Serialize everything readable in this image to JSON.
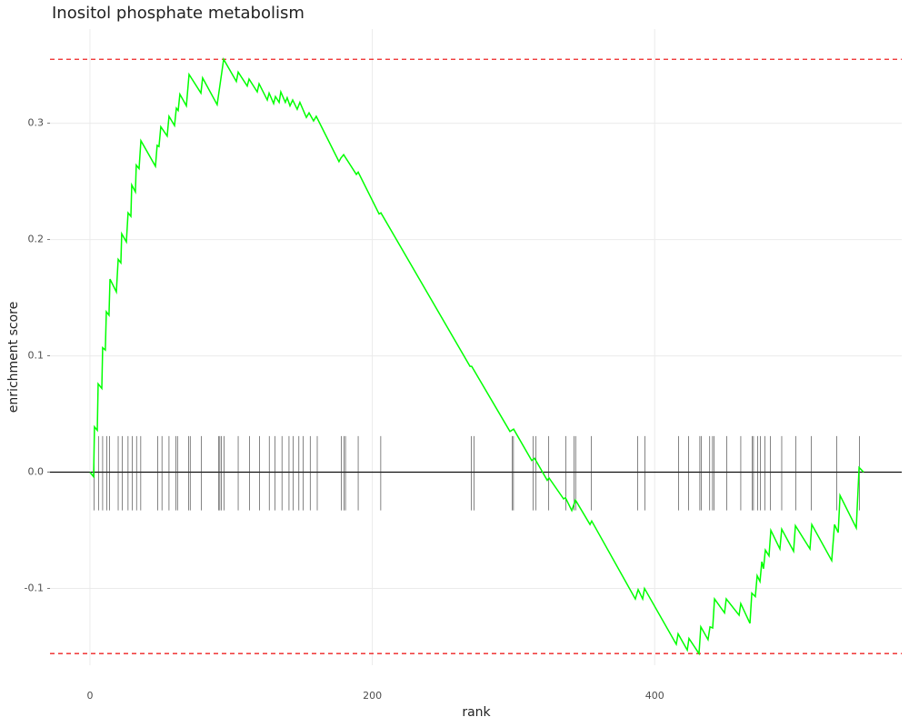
{
  "chart_data": {
    "type": "line",
    "title": "Inositol phosphate metabolism",
    "x_label": "rank",
    "y_label": "enrichment score",
    "xlim": [
      -28.3,
      575
    ],
    "ylim": [
      -0.166,
      0.381
    ],
    "xticks": [
      0,
      200,
      400
    ],
    "yticks": [
      -0.1,
      {
        "value": 0,
        "label": "0.0"
      },
      0.1,
      0.2,
      0.3
    ],
    "grid": true,
    "series": [
      {
        "color": "#00ff00",
        "x": [
          0,
          2.6,
          3.2,
          5.2,
          5.8,
          8.4,
          9.0,
          10.9,
          11.6,
          13.5,
          14.2,
          18.7,
          20.0,
          21.9,
          22.5,
          25.8,
          27.0,
          29.0,
          29.6,
          32.2,
          32.8,
          34.8,
          36.1,
          46.4,
          47.6,
          48.9,
          50.2,
          54.7,
          56.0,
          59.9,
          61.2,
          62.5,
          63.7,
          68.3,
          70.2,
          78.6,
          79.8,
          90.1,
          94.7,
          103.7,
          105.0,
          111.4,
          112.7,
          118.5,
          119.8,
          125.6,
          126.9,
          130.1,
          131.4,
          134.0,
          135.2,
          138.4,
          139.7,
          141.7,
          143.6,
          146.8,
          148.7,
          153.3,
          155.2,
          158.4,
          160.3,
          176.4,
          177.7,
          179.7,
          188.7,
          190.0,
          204.8,
          206.1,
          269.2,
          270.4,
          297.5,
          300.1,
          312.9,
          314.9,
          323.9,
          325.2,
          335.5,
          336.8,
          341.3,
          343.9,
          354.2,
          355.4,
          386.3,
          388.3,
          391.5,
          392.8,
          415.3,
          416.6,
          423.1,
          424.3,
          431.4,
          432.7,
          437.8,
          439.2,
          441.1,
          442.4,
          449.5,
          450.7,
          459.8,
          461.0,
          467.5,
          468.8,
          471.3,
          472.6,
          474.6,
          475.9,
          477.1,
          478.4,
          481.0,
          482.3,
          488.7,
          490.0,
          498.4,
          499.7,
          510.0,
          511.3,
          525.4,
          527.4,
          530.0,
          531.3,
          542.8,
          544.8,
          548.0
        ],
        "values": [
          0,
          -0.004,
          0.039,
          0.036,
          0.076,
          0.072,
          0.107,
          0.105,
          0.138,
          0.135,
          0.166,
          0.155,
          0.183,
          0.18,
          0.205,
          0.198,
          0.223,
          0.22,
          0.247,
          0.241,
          0.264,
          0.261,
          0.285,
          0.263,
          0.281,
          0.28,
          0.297,
          0.289,
          0.306,
          0.298,
          0.313,
          0.311,
          0.325,
          0.315,
          0.342,
          0.326,
          0.339,
          0.316,
          0.355,
          0.336,
          0.344,
          0.332,
          0.338,
          0.327,
          0.334,
          0.32,
          0.326,
          0.317,
          0.323,
          0.318,
          0.327,
          0.318,
          0.322,
          0.315,
          0.32,
          0.312,
          0.318,
          0.305,
          0.309,
          0.302,
          0.306,
          0.267,
          0.27,
          0.273,
          0.256,
          0.258,
          0.222,
          0.223,
          0.091,
          0.091,
          0.035,
          0.037,
          0.01,
          0.012,
          -0.007,
          -0.005,
          -0.023,
          -0.022,
          -0.033,
          -0.024,
          -0.045,
          -0.042,
          -0.109,
          -0.101,
          -0.109,
          -0.1,
          -0.148,
          -0.139,
          -0.153,
          -0.143,
          -0.156,
          -0.133,
          -0.144,
          -0.133,
          -0.134,
          -0.109,
          -0.121,
          -0.109,
          -0.123,
          -0.113,
          -0.13,
          -0.104,
          -0.107,
          -0.089,
          -0.094,
          -0.077,
          -0.083,
          -0.067,
          -0.072,
          -0.05,
          -0.066,
          -0.049,
          -0.068,
          -0.046,
          -0.066,
          -0.045,
          -0.076,
          -0.045,
          -0.052,
          -0.02,
          -0.048,
          0.004,
          0.0
        ]
      }
    ],
    "hits": [
      3,
      6,
      9,
      12,
      14,
      20,
      23,
      27,
      30,
      33,
      36,
      48,
      51,
      56,
      61,
      62,
      70,
      71,
      79,
      91,
      92,
      93,
      95,
      105,
      113,
      120,
      127,
      131,
      136,
      141,
      144,
      148,
      151,
      156,
      161,
      178,
      180,
      181,
      190,
      206,
      270,
      272,
      299,
      300,
      314,
      316,
      325,
      337,
      343,
      344,
      355,
      388,
      393,
      417,
      424,
      432,
      433,
      439,
      441,
      442,
      451,
      461,
      469,
      470,
      473,
      475,
      478,
      482,
      490,
      500,
      511,
      529,
      545
    ],
    "max_es": 0.355,
    "min_es": -0.156,
    "threshold_color": "#ee2222"
  }
}
